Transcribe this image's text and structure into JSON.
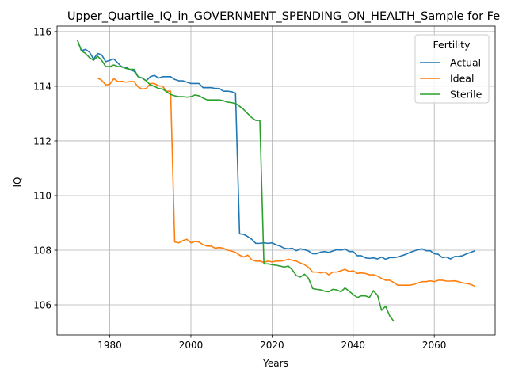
{
  "chart_data": {
    "type": "line",
    "title": "Upper_Quartile_IQ_in_GOVERNMENT_SPENDING_ON_HEALTH_Sample for Fe",
    "xlabel": "Years",
    "ylabel": "IQ",
    "xlim": [
      1967,
      2075
    ],
    "ylim": [
      104.9,
      116.2
    ],
    "xticks": [
      1980,
      2000,
      2020,
      2040,
      2060
    ],
    "yticks": [
      106,
      108,
      110,
      112,
      114,
      116
    ],
    "grid": true,
    "legend_title": "Fertility",
    "legend_position": "top-right",
    "series": [
      {
        "name": "Actual",
        "color": "#1f77b4",
        "points": [
          [
            1972,
            115.7
          ],
          [
            1973,
            115.3
          ],
          [
            1974,
            115.35
          ],
          [
            1975,
            115.25
          ],
          [
            1976,
            115.0
          ],
          [
            1977,
            115.2
          ],
          [
            1978,
            115.15
          ],
          [
            1979,
            114.9
          ],
          [
            1980,
            114.95
          ],
          [
            1981,
            115.0
          ],
          [
            1982,
            114.85
          ],
          [
            1983,
            114.7
          ],
          [
            1984,
            114.7
          ],
          [
            1985,
            114.6
          ],
          [
            1986,
            114.55
          ],
          [
            1987,
            114.35
          ],
          [
            1988,
            114.3
          ],
          [
            1989,
            114.2
          ],
          [
            1990,
            114.35
          ],
          [
            1991,
            114.4
          ],
          [
            1992,
            114.3
          ],
          [
            1993,
            114.35
          ],
          [
            1994,
            114.35
          ],
          [
            1995,
            114.35
          ],
          [
            1996,
            114.25
          ],
          [
            1997,
            114.2
          ],
          [
            1998,
            114.2
          ],
          [
            1999,
            114.15
          ],
          [
            2000,
            114.1
          ],
          [
            2001,
            114.1
          ],
          [
            2002,
            114.1
          ],
          [
            2003,
            113.95
          ],
          [
            2004,
            113.95
          ],
          [
            2005,
            113.95
          ],
          [
            2006,
            113.92
          ],
          [
            2007,
            113.92
          ],
          [
            2008,
            113.82
          ],
          [
            2009,
            113.82
          ],
          [
            2010,
            113.8
          ],
          [
            2011,
            113.75
          ],
          [
            2012,
            108.6
          ],
          [
            2013,
            108.58
          ],
          [
            2014,
            108.5
          ],
          [
            2015,
            108.4
          ],
          [
            2016,
            108.25
          ],
          [
            2017,
            108.25
          ],
          [
            2018,
            108.27
          ],
          [
            2019,
            108.25
          ],
          [
            2020,
            108.27
          ],
          [
            2021,
            108.2
          ],
          [
            2022,
            108.15
          ],
          [
            2023,
            108.07
          ],
          [
            2024,
            108.05
          ],
          [
            2025,
            108.07
          ],
          [
            2026,
            107.98
          ],
          [
            2027,
            108.05
          ],
          [
            2028,
            108.02
          ],
          [
            2029,
            107.97
          ],
          [
            2030,
            107.87
          ],
          [
            2031,
            107.87
          ],
          [
            2032,
            107.93
          ],
          [
            2033,
            107.95
          ],
          [
            2034,
            107.92
          ],
          [
            2035,
            107.97
          ],
          [
            2036,
            108.02
          ],
          [
            2037,
            108.0
          ],
          [
            2038,
            108.05
          ],
          [
            2039,
            107.95
          ],
          [
            2040,
            107.95
          ],
          [
            2041,
            107.8
          ],
          [
            2042,
            107.8
          ],
          [
            2043,
            107.72
          ],
          [
            2044,
            107.7
          ],
          [
            2045,
            107.72
          ],
          [
            2046,
            107.68
          ],
          [
            2047,
            107.75
          ],
          [
            2048,
            107.67
          ],
          [
            2049,
            107.73
          ],
          [
            2050,
            107.73
          ],
          [
            2051,
            107.75
          ],
          [
            2052,
            107.8
          ],
          [
            2053,
            107.85
          ],
          [
            2054,
            107.92
          ],
          [
            2055,
            107.97
          ],
          [
            2056,
            108.02
          ],
          [
            2057,
            108.05
          ],
          [
            2058,
            107.98
          ],
          [
            2059,
            107.98
          ],
          [
            2060,
            107.87
          ],
          [
            2061,
            107.85
          ],
          [
            2062,
            107.73
          ],
          [
            2063,
            107.75
          ],
          [
            2064,
            107.68
          ],
          [
            2065,
            107.77
          ],
          [
            2066,
            107.77
          ],
          [
            2067,
            107.8
          ],
          [
            2068,
            107.87
          ],
          [
            2069,
            107.92
          ],
          [
            2070,
            107.98
          ]
        ]
      },
      {
        "name": "Ideal",
        "color": "#ff7f0e",
        "points": [
          [
            1977,
            114.3
          ],
          [
            1978,
            114.22
          ],
          [
            1979,
            114.05
          ],
          [
            1980,
            114.07
          ],
          [
            1981,
            114.28
          ],
          [
            1982,
            114.17
          ],
          [
            1983,
            114.18
          ],
          [
            1984,
            114.15
          ],
          [
            1985,
            114.17
          ],
          [
            1986,
            114.17
          ],
          [
            1987,
            113.97
          ],
          [
            1988,
            113.9
          ],
          [
            1989,
            113.92
          ],
          [
            1990,
            114.1
          ],
          [
            1991,
            114.1
          ],
          [
            1992,
            114.02
          ],
          [
            1993,
            114.0
          ],
          [
            1994,
            113.82
          ],
          [
            1995,
            113.82
          ],
          [
            1996,
            108.3
          ],
          [
            1997,
            108.27
          ],
          [
            1998,
            108.35
          ],
          [
            1999,
            108.4
          ],
          [
            2000,
            108.27
          ],
          [
            2001,
            108.32
          ],
          [
            2002,
            108.3
          ],
          [
            2003,
            108.2
          ],
          [
            2004,
            108.15
          ],
          [
            2005,
            108.15
          ],
          [
            2006,
            108.07
          ],
          [
            2007,
            108.1
          ],
          [
            2008,
            108.07
          ],
          [
            2009,
            108.0
          ],
          [
            2010,
            107.97
          ],
          [
            2011,
            107.92
          ],
          [
            2012,
            107.82
          ],
          [
            2013,
            107.75
          ],
          [
            2014,
            107.82
          ],
          [
            2015,
            107.65
          ],
          [
            2016,
            107.6
          ],
          [
            2017,
            107.6
          ],
          [
            2018,
            107.55
          ],
          [
            2019,
            107.6
          ],
          [
            2020,
            107.57
          ],
          [
            2021,
            107.6
          ],
          [
            2022,
            107.6
          ],
          [
            2023,
            107.62
          ],
          [
            2024,
            107.67
          ],
          [
            2025,
            107.63
          ],
          [
            2026,
            107.6
          ],
          [
            2027,
            107.53
          ],
          [
            2028,
            107.47
          ],
          [
            2029,
            107.37
          ],
          [
            2030,
            107.2
          ],
          [
            2031,
            107.2
          ],
          [
            2032,
            107.17
          ],
          [
            2033,
            107.2
          ],
          [
            2034,
            107.1
          ],
          [
            2035,
            107.2
          ],
          [
            2036,
            107.2
          ],
          [
            2037,
            107.25
          ],
          [
            2038,
            107.3
          ],
          [
            2039,
            107.22
          ],
          [
            2040,
            107.25
          ],
          [
            2041,
            107.15
          ],
          [
            2042,
            107.17
          ],
          [
            2043,
            107.15
          ],
          [
            2044,
            107.1
          ],
          [
            2045,
            107.1
          ],
          [
            2046,
            107.05
          ],
          [
            2047,
            106.97
          ],
          [
            2048,
            106.9
          ],
          [
            2049,
            106.9
          ],
          [
            2050,
            106.82
          ],
          [
            2051,
            106.72
          ],
          [
            2052,
            106.72
          ],
          [
            2053,
            106.72
          ],
          [
            2054,
            106.72
          ],
          [
            2055,
            106.75
          ],
          [
            2056,
            106.8
          ],
          [
            2057,
            106.85
          ],
          [
            2058,
            106.85
          ],
          [
            2059,
            106.88
          ],
          [
            2060,
            106.85
          ],
          [
            2061,
            106.9
          ],
          [
            2062,
            106.9
          ],
          [
            2063,
            106.87
          ],
          [
            2064,
            106.87
          ],
          [
            2065,
            106.88
          ],
          [
            2066,
            106.85
          ],
          [
            2067,
            106.8
          ],
          [
            2068,
            106.78
          ],
          [
            2069,
            106.75
          ],
          [
            2070,
            106.68
          ]
        ]
      },
      {
        "name": "Sterile",
        "color": "#2ca02c",
        "points": [
          [
            1972,
            115.7
          ],
          [
            1973,
            115.3
          ],
          [
            1974,
            115.2
          ],
          [
            1975,
            115.05
          ],
          [
            1976,
            114.95
          ],
          [
            1977,
            115.1
          ],
          [
            1978,
            114.95
          ],
          [
            1979,
            114.72
          ],
          [
            1980,
            114.72
          ],
          [
            1981,
            114.78
          ],
          [
            1982,
            114.72
          ],
          [
            1983,
            114.72
          ],
          [
            1984,
            114.65
          ],
          [
            1985,
            114.62
          ],
          [
            1986,
            114.62
          ],
          [
            1987,
            114.35
          ],
          [
            1988,
            114.3
          ],
          [
            1989,
            114.2
          ],
          [
            1990,
            114.05
          ],
          [
            1991,
            114.0
          ],
          [
            1992,
            113.92
          ],
          [
            1993,
            113.9
          ],
          [
            1994,
            113.8
          ],
          [
            1995,
            113.7
          ],
          [
            1996,
            113.65
          ],
          [
            1997,
            113.62
          ],
          [
            1998,
            113.62
          ],
          [
            1999,
            113.6
          ],
          [
            2000,
            113.62
          ],
          [
            2001,
            113.68
          ],
          [
            2002,
            113.65
          ],
          [
            2003,
            113.57
          ],
          [
            2004,
            113.5
          ],
          [
            2005,
            113.5
          ],
          [
            2006,
            113.5
          ],
          [
            2007,
            113.5
          ],
          [
            2008,
            113.47
          ],
          [
            2009,
            113.42
          ],
          [
            2010,
            113.4
          ],
          [
            2011,
            113.37
          ],
          [
            2012,
            113.27
          ],
          [
            2013,
            113.15
          ],
          [
            2014,
            113.0
          ],
          [
            2015,
            112.85
          ],
          [
            2016,
            112.75
          ],
          [
            2017,
            112.75
          ],
          [
            2018,
            107.5
          ],
          [
            2019,
            107.5
          ],
          [
            2020,
            107.47
          ],
          [
            2021,
            107.45
          ],
          [
            2022,
            107.42
          ],
          [
            2023,
            107.38
          ],
          [
            2024,
            107.42
          ],
          [
            2025,
            107.28
          ],
          [
            2026,
            107.07
          ],
          [
            2027,
            107.02
          ],
          [
            2028,
            107.12
          ],
          [
            2029,
            106.97
          ],
          [
            2030,
            106.6
          ],
          [
            2031,
            106.57
          ],
          [
            2032,
            106.55
          ],
          [
            2033,
            106.5
          ],
          [
            2034,
            106.48
          ],
          [
            2035,
            106.57
          ],
          [
            2036,
            106.55
          ],
          [
            2037,
            106.48
          ],
          [
            2038,
            106.62
          ],
          [
            2039,
            106.5
          ],
          [
            2040,
            106.38
          ],
          [
            2041,
            106.27
          ],
          [
            2042,
            106.33
          ],
          [
            2043,
            106.33
          ],
          [
            2044,
            106.27
          ],
          [
            2045,
            106.52
          ],
          [
            2046,
            106.35
          ],
          [
            2047,
            105.8
          ],
          [
            2048,
            105.95
          ],
          [
            2049,
            105.6
          ],
          [
            2050,
            105.4
          ]
        ]
      }
    ]
  }
}
